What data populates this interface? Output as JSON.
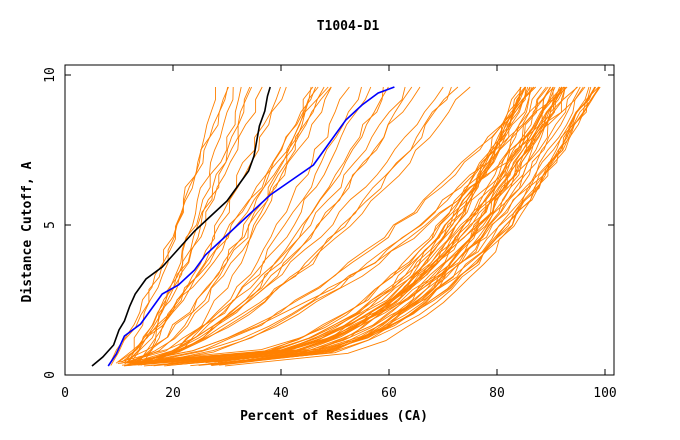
{
  "chart_data": {
    "type": "line",
    "title": "T1004-D1",
    "xlabel": "Percent of Residues (CA)",
    "ylabel": "Distance Cutoff, A",
    "xlim": [
      0,
      100
    ],
    "ylim": [
      0,
      10
    ],
    "xticks": [
      0,
      20,
      40,
      60,
      80,
      100
    ],
    "yticks": [
      0,
      5,
      10
    ],
    "grid": false,
    "legend": "none",
    "colors": {
      "background_series": "#ff8000",
      "highlight_black": "#000000",
      "highlight_blue": "#0000ff"
    },
    "highlight_series": [
      {
        "name": "black",
        "color": "#000000",
        "points": [
          [
            5,
            0.3
          ],
          [
            7,
            0.6
          ],
          [
            9,
            1.0
          ],
          [
            10,
            1.5
          ],
          [
            11,
            1.8
          ],
          [
            12,
            2.3
          ],
          [
            13,
            2.7
          ],
          [
            15,
            3.2
          ],
          [
            18,
            3.6
          ],
          [
            20,
            4.0
          ],
          [
            22,
            4.4
          ],
          [
            24,
            4.8
          ],
          [
            27,
            5.3
          ],
          [
            30,
            5.8
          ],
          [
            32,
            6.3
          ],
          [
            34,
            6.8
          ],
          [
            35,
            7.3
          ],
          [
            35.5,
            7.8
          ],
          [
            36,
            8.3
          ],
          [
            37,
            8.8
          ],
          [
            37.5,
            9.3
          ],
          [
            38,
            9.6
          ]
        ]
      },
      {
        "name": "blue",
        "color": "#0000ff",
        "points": [
          [
            8,
            0.3
          ],
          [
            9.5,
            0.7
          ],
          [
            11,
            1.3
          ],
          [
            14,
            1.7
          ],
          [
            16,
            2.2
          ],
          [
            18,
            2.7
          ],
          [
            21,
            3.0
          ],
          [
            24,
            3.5
          ],
          [
            26,
            4.0
          ],
          [
            29,
            4.5
          ],
          [
            32,
            5.0
          ],
          [
            35,
            5.5
          ],
          [
            38,
            6.0
          ],
          [
            42,
            6.5
          ],
          [
            46,
            7.0
          ],
          [
            48,
            7.5
          ],
          [
            50,
            8.0
          ],
          [
            52,
            8.5
          ],
          [
            55,
            9.0
          ],
          [
            58,
            9.4
          ],
          [
            61,
            9.6
          ]
        ]
      }
    ],
    "background_series": {
      "description_count": 80,
      "groups": [
        {
          "name": "steep",
          "count": 14,
          "x_start_range": [
            8,
            14
          ],
          "x_end_range": [
            22,
            50
          ]
        },
        {
          "name": "mid",
          "count": 22,
          "x_start_range": [
            9,
            16
          ],
          "x_end_range": [
            45,
            100
          ]
        },
        {
          "name": "shallow",
          "count": 44,
          "x_start_range": [
            10,
            30
          ],
          "x_end_range": [
            84,
            100
          ]
        }
      ]
    }
  }
}
